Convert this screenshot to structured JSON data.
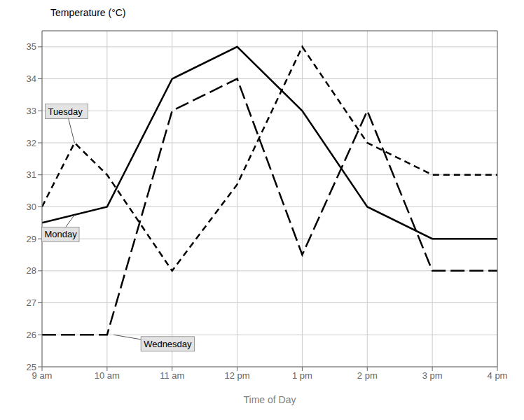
{
  "chart_data": {
    "type": "line",
    "x_label": "Time of Day",
    "y_label": "Temperature (°C)",
    "xlim": [
      9,
      16
    ],
    "xticks": [
      {
        "value": 9,
        "label": "9 am"
      },
      {
        "value": 10,
        "label": "10 am"
      },
      {
        "value": 11,
        "label": "11 am"
      },
      {
        "value": 12,
        "label": "12 pm"
      },
      {
        "value": 13,
        "label": "1 pm"
      },
      {
        "value": 14,
        "label": "2 pm"
      },
      {
        "value": 15,
        "label": "3 pm"
      },
      {
        "value": 16,
        "label": "4 pm"
      }
    ],
    "ylim": [
      25,
      35.5
    ],
    "yticks": [
      25,
      26,
      27,
      28,
      29,
      30,
      31,
      32,
      33,
      34,
      35
    ],
    "grid": true,
    "series": [
      {
        "name": "Monday",
        "color": "#000000",
        "line_style": "solid",
        "x": [
          9,
          10,
          11,
          12,
          13,
          14,
          15,
          16
        ],
        "values": [
          29.5,
          30,
          34,
          35,
          33,
          30,
          29,
          29
        ]
      },
      {
        "name": "Tuesday",
        "color": "#000000",
        "line_style": "dashed",
        "x": [
          9,
          9.5,
          10,
          11,
          12,
          13,
          14,
          15,
          16
        ],
        "values": [
          30,
          32,
          31,
          28,
          30.7,
          35,
          32,
          31,
          31
        ]
      },
      {
        "name": "Wednesday",
        "color": "#000000",
        "line_style": "longdashed",
        "x": [
          9,
          10,
          11,
          12,
          13,
          14,
          15,
          16
        ],
        "values": [
          26,
          26,
          33,
          34,
          28.5,
          33,
          28,
          28
        ]
      }
    ],
    "annotations": [
      {
        "text": "Tuesday",
        "x": 9.5,
        "y": 32.0
      },
      {
        "text": "Monday",
        "x": 9.5,
        "y": 29.75
      },
      {
        "text": "Wednesday",
        "x": 10.1,
        "y": 26.0
      }
    ]
  }
}
